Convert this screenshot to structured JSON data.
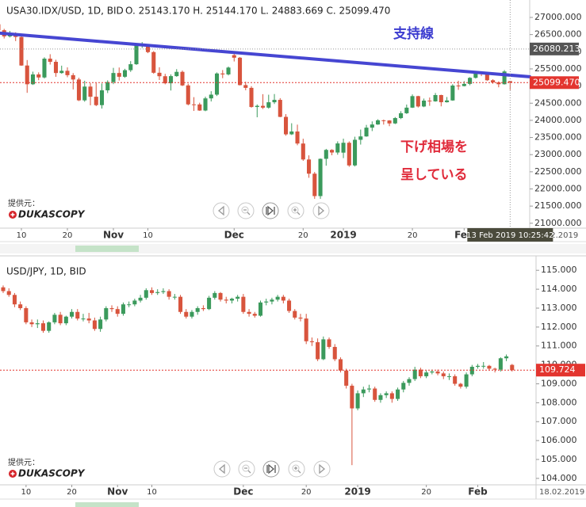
{
  "chart_data": [
    {
      "type": "candlestick",
      "title": "USA30.IDX/USD, 1D, BID",
      "ohlc_text": "O. 25143.170 H. 25144.170 L. 24883.669 C. 25099.470",
      "open": [
        26800,
        26627,
        26447,
        26486,
        26430,
        25598,
        25052,
        25339,
        25250,
        25798,
        25706,
        25379,
        25444,
        25317,
        25191,
        24583,
        24984,
        24688,
        24443,
        24875,
        25116,
        25380,
        25270,
        25462,
        25636,
        26181,
        26191,
        25989,
        25387,
        25286,
        25080,
        25289,
        25413,
        25018,
        24466,
        24464,
        24286,
        24640,
        24749,
        25366,
        25339,
        25900,
        25826,
        25027,
        24947,
        24389,
        24423,
        24370,
        24527,
        24597,
        24101,
        23592,
        23675,
        23324,
        22859,
        22445,
        21792,
        22878,
        23138,
        23062,
        23058,
        23346,
        22686,
        23433,
        23531,
        23787,
        23879,
        24001,
        23996,
        23910,
        24066,
        24207,
        24370,
        24706,
        24404,
        24575,
        24553,
        24737,
        24528,
        24580,
        25014,
        24999,
        25063,
        25239,
        25411,
        25390,
        25169,
        25106,
        25053,
        25143.17
      ],
      "high": [
        26860,
        26667,
        26606,
        26566,
        26450,
        25758,
        25419,
        25399,
        25838,
        25928,
        25766,
        25594,
        25544,
        25377,
        25241,
        25154,
        25084,
        25088,
        25075,
        25166,
        25530,
        25540,
        25502,
        25726,
        26201,
        26281,
        26211,
        26019,
        25547,
        25356,
        25339,
        25493,
        25453,
        25068,
        24676,
        24514,
        24690,
        24849,
        25396,
        25466,
        25568,
        25980,
        25846,
        25127,
        24997,
        24463,
        24763,
        24747,
        24767,
        24647,
        24181,
        23915,
        23875,
        23464,
        22979,
        22495,
        22888,
        23168,
        23158,
        23387,
        23466,
        23386,
        23523,
        23731,
        23867,
        23969,
        24031,
        24021,
        24006,
        24096,
        24267,
        24460,
        24756,
        24716,
        24635,
        24665,
        24797,
        24747,
        24680,
        25054,
        25154,
        25143,
        25259,
        25441,
        25431,
        25410,
        25199,
        25136,
        25465,
        25144.17
      ],
      "low": [
        26597,
        26387,
        26417,
        26310,
        25588,
        24802,
        25032,
        25170,
        25220,
        25626,
        25269,
        25359,
        25257,
        24901,
        24563,
        24543,
        24438,
        24413,
        24343,
        24795,
        25056,
        25160,
        25240,
        25412,
        25616,
        26111,
        25959,
        25357,
        25176,
        25050,
        24870,
        25269,
        24998,
        24436,
        24274,
        24276,
        24266,
        24550,
        24709,
        25229,
        25309,
        25716,
        25017,
        24877,
        24369,
        24089,
        24330,
        24340,
        24477,
        24091,
        23552,
        23572,
        23274,
        22819,
        22325,
        21712,
        21712,
        22678,
        22982,
        22998,
        22898,
        22646,
        22656,
        23293,
        23521,
        23687,
        23869,
        23876,
        23830,
        23890,
        24036,
        24187,
        24360,
        24374,
        24384,
        24423,
        24543,
        24408,
        24518,
        24570,
        24889,
        24989,
        25023,
        25219,
        25290,
        25149,
        25066,
        24963,
        25043,
        24883.669
      ],
      "close": [
        26627,
        26447,
        26486,
        26430,
        25598,
        25052,
        25339,
        25250,
        25798,
        25706,
        25379,
        25444,
        25317,
        25191,
        24583,
        24984,
        24688,
        24443,
        24875,
        25116,
        25380,
        25270,
        25462,
        25636,
        26181,
        26191,
        25989,
        25387,
        25286,
        25080,
        25289,
        25413,
        25018,
        24466,
        24464,
        24286,
        24640,
        24749,
        25366,
        25339,
        25538,
        25826,
        25027,
        24947,
        24389,
        24423,
        24370,
        24527,
        24597,
        24101,
        23592,
        23675,
        23324,
        22859,
        22445,
        21792,
        22878,
        23138,
        23062,
        23327,
        23346,
        22686,
        23433,
        23531,
        23787,
        23879,
        24001,
        23996,
        23910,
        24066,
        24207,
        24370,
        24706,
        24404,
        24575,
        24553,
        24737,
        24528,
        24580,
        25014,
        24999,
        25063,
        25239,
        25411,
        25390,
        25169,
        25106,
        25053,
        25425,
        25099.47
      ],
      "up_color": "#3b9a5c",
      "down_color": "#d8543d",
      "xlim": [
        0.28,
        92.4
      ],
      "xticks": [
        {
          "value": 4,
          "label": "10"
        },
        {
          "value": 12,
          "label": "20"
        },
        {
          "value": 20,
          "label": "Nov"
        },
        {
          "value": 26,
          "label": "10"
        },
        {
          "value": 41,
          "label": "Dec"
        },
        {
          "value": 53,
          "label": "20"
        },
        {
          "value": 60,
          "label": "2019"
        },
        {
          "value": 72,
          "label": "20"
        },
        {
          "value": 81,
          "label": "Feb"
        }
      ],
      "ylim": [
        20857,
        27508
      ],
      "yticks": [
        {
          "value": 27000,
          "label": "27000.000"
        },
        {
          "value": 26500,
          "label": "26500.000"
        },
        {
          "value": 26000,
          "label": "26000.000"
        },
        {
          "value": 25500,
          "label": "25500.000"
        },
        {
          "value": 25000,
          "label": "25000.000"
        },
        {
          "value": 24500,
          "label": "24500.000"
        },
        {
          "value": 24000,
          "label": "24000.000"
        },
        {
          "value": 23500,
          "label": "23500.000"
        },
        {
          "value": 23000,
          "label": "23000.000"
        },
        {
          "value": 22500,
          "label": "22500.000"
        },
        {
          "value": 22000,
          "label": "22000.000"
        },
        {
          "value": 21500,
          "label": "21500.000"
        },
        {
          "value": 21000,
          "label": "21000.000"
        }
      ],
      "last_price": {
        "value": 25099.47,
        "label": "25099.470"
      },
      "last_color": "#e3352f",
      "crosshair": {
        "x": 89,
        "value": 26080.213,
        "date": "13 Feb 2019 10:25:42"
      },
      "trendline": {
        "x": [
          0.28,
          92.4
        ],
        "values": [
          26540,
          25270
        ],
        "color": "#4646d2"
      },
      "annotations": [
        {
          "text": "支持線",
          "color": "#3c3cd0"
        },
        {
          "text": "下げ相場を",
          "color": "#e02a3a"
        },
        {
          "text": "呈している",
          "color": "#e02a3a"
        }
      ],
      "axis_date": "18.02.2019"
    },
    {
      "type": "candlestick",
      "title": "USD/JPY, 1D, BID",
      "open": [
        114.1,
        113.9,
        113.7,
        113.2,
        113.0,
        112.25,
        112.15,
        112.2,
        111.8,
        112.25,
        112.65,
        112.2,
        112.55,
        112.8,
        112.45,
        112.45,
        112.35,
        111.9,
        112.4,
        113.0,
        112.95,
        112.7,
        113.2,
        113.2,
        113.4,
        113.55,
        113.95,
        113.8,
        113.85,
        113.9,
        113.6,
        113.6,
        112.8,
        112.55,
        112.8,
        113.0,
        112.95,
        113.55,
        113.8,
        113.45,
        113.4,
        113.5,
        113.6,
        112.8,
        112.7,
        112.6,
        113.3,
        113.35,
        113.45,
        113.6,
        113.4,
        112.85,
        112.5,
        112.45,
        111.25,
        111.2,
        110.3,
        111.35,
        110.95,
        110.3,
        109.7,
        108.9,
        107.7,
        108.5,
        108.7,
        108.75,
        108.15,
        108.4,
        108.5,
        108.2,
        108.7,
        109.05,
        109.25,
        109.75,
        109.4,
        109.6,
        109.65,
        109.55,
        109.4,
        109.4,
        109.0,
        108.85,
        109.5,
        109.9,
        109.95,
        109.95,
        109.8,
        109.75,
        110.35,
        110.0
      ],
      "high": [
        114.2,
        114.05,
        113.8,
        113.35,
        113.1,
        112.4,
        112.4,
        112.35,
        112.3,
        112.75,
        112.8,
        112.6,
        112.95,
        112.95,
        112.7,
        112.75,
        112.5,
        112.55,
        113.1,
        113.15,
        113.1,
        113.3,
        113.35,
        113.5,
        113.7,
        114.05,
        114.1,
        114.0,
        114.05,
        114.0,
        113.75,
        113.7,
        112.95,
        112.9,
        113.1,
        113.15,
        113.65,
        113.9,
        113.85,
        113.6,
        113.55,
        113.7,
        113.75,
        112.95,
        112.8,
        113.4,
        113.5,
        113.55,
        113.7,
        113.7,
        113.5,
        112.95,
        112.7,
        112.7,
        111.45,
        111.4,
        111.5,
        111.45,
        111.1,
        110.4,
        109.8,
        109.0,
        108.65,
        108.85,
        108.95,
        108.85,
        108.5,
        108.6,
        108.6,
        108.8,
        109.15,
        109.35,
        109.9,
        109.85,
        109.7,
        109.75,
        109.75,
        109.65,
        109.55,
        109.5,
        109.05,
        109.6,
        110.0,
        110.05,
        110.15,
        110.0,
        109.85,
        110.4,
        110.55,
        110.05
      ],
      "low": [
        113.8,
        113.6,
        113.05,
        112.9,
        112.15,
        112.0,
        111.95,
        111.7,
        111.7,
        112.15,
        112.1,
        112.1,
        112.45,
        112.35,
        112.3,
        112.2,
        111.8,
        111.75,
        112.3,
        112.8,
        112.55,
        112.6,
        113.05,
        113.1,
        113.3,
        113.45,
        113.7,
        113.7,
        113.75,
        113.45,
        113.45,
        112.7,
        112.45,
        112.45,
        112.65,
        112.85,
        112.9,
        113.45,
        113.35,
        113.25,
        113.25,
        113.35,
        112.7,
        112.55,
        112.5,
        112.55,
        113.15,
        113.2,
        113.35,
        113.25,
        112.75,
        112.4,
        112.3,
        111.1,
        111.0,
        110.2,
        110.25,
        110.85,
        110.2,
        109.6,
        108.75,
        104.7,
        107.6,
        108.3,
        108.55,
        108.05,
        108.0,
        108.25,
        108.0,
        108.1,
        108.55,
        108.9,
        109.15,
        109.3,
        109.3,
        109.5,
        109.45,
        109.25,
        109.2,
        108.9,
        108.75,
        108.75,
        109.4,
        109.8,
        109.8,
        109.7,
        109.6,
        109.65,
        110.2,
        109.65
      ],
      "close": [
        113.9,
        113.7,
        113.2,
        113.0,
        112.25,
        112.15,
        112.2,
        111.8,
        112.25,
        112.65,
        112.2,
        112.55,
        112.8,
        112.45,
        112.45,
        112.35,
        111.9,
        112.4,
        113.0,
        112.95,
        112.7,
        113.2,
        113.2,
        113.4,
        113.55,
        113.95,
        113.8,
        113.85,
        113.9,
        113.6,
        113.6,
        112.8,
        112.55,
        112.8,
        113.0,
        112.95,
        113.55,
        113.8,
        113.45,
        113.4,
        113.5,
        113.6,
        112.8,
        112.7,
        112.6,
        113.3,
        113.35,
        113.45,
        113.6,
        113.4,
        112.85,
        112.5,
        112.45,
        111.25,
        111.2,
        110.3,
        111.35,
        110.95,
        110.3,
        109.7,
        108.9,
        107.7,
        108.5,
        108.7,
        108.75,
        108.15,
        108.4,
        108.5,
        108.2,
        108.7,
        109.05,
        109.25,
        109.75,
        109.4,
        109.6,
        109.65,
        109.55,
        109.4,
        109.4,
        109.0,
        108.85,
        109.5,
        109.9,
        109.95,
        109.95,
        109.8,
        109.75,
        110.35,
        110.45,
        109.72
      ],
      "up_color": "#3b9a5c",
      "down_color": "#d8543d",
      "xlim": [
        -0.556,
        93.19
      ],
      "xticks": [
        {
          "value": 4,
          "label": "10"
        },
        {
          "value": 12,
          "label": "20"
        },
        {
          "value": 20,
          "label": "Nov"
        },
        {
          "value": 26,
          "label": "10"
        },
        {
          "value": 42,
          "label": "Dec"
        },
        {
          "value": 53,
          "label": "20"
        },
        {
          "value": 62,
          "label": "2019"
        },
        {
          "value": 74,
          "label": "20"
        },
        {
          "value": 83,
          "label": "Feb"
        }
      ],
      "ylim": [
        103.66,
        115.47
      ],
      "yticks": [
        {
          "value": 115,
          "label": "115.000"
        },
        {
          "value": 114,
          "label": "114.000"
        },
        {
          "value": 113,
          "label": "113.000"
        },
        {
          "value": 112,
          "label": "112.000"
        },
        {
          "value": 111,
          "label": "111.000"
        },
        {
          "value": 110,
          "label": "110.000"
        },
        {
          "value": 109,
          "label": "109.000"
        },
        {
          "value": 108,
          "label": "108.000"
        },
        {
          "value": 107,
          "label": "107.000"
        },
        {
          "value": 106,
          "label": "106.000"
        },
        {
          "value": 105,
          "label": "105.000"
        },
        {
          "value": 104,
          "label": "104.000"
        }
      ],
      "last_price": {
        "value": 109.724,
        "label": "109.724"
      },
      "last_color": "#e3352f",
      "axis_date": "18.02.2019"
    }
  ],
  "provider": "提供元：",
  "logo": "DUKASCOPY"
}
